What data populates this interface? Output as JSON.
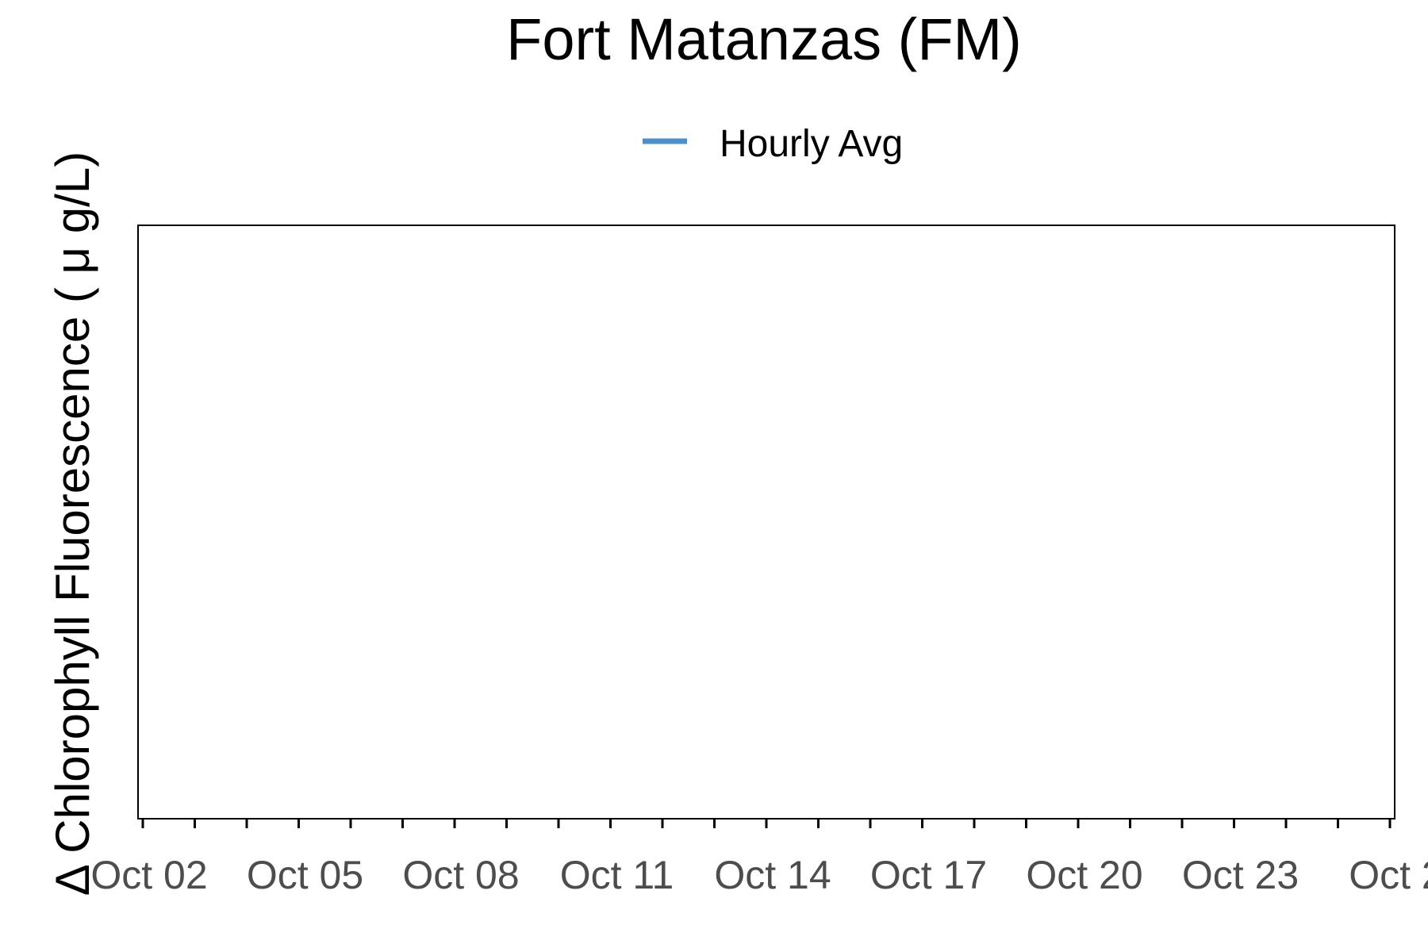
{
  "chart_data": {
    "type": "line",
    "title": "Fort Matanzas (FM)",
    "ylabel": "Δ Chlorophyll Fluorescence ( μ g/L)",
    "xlabel": "",
    "legend": {
      "position": "top",
      "entries": [
        {
          "label": "Hourly Avg",
          "color": "#4d90c9"
        }
      ]
    },
    "x_axis": {
      "kind": "date",
      "tick_labels": [
        "Oct 02",
        "Oct 05",
        "Oct 08",
        "Oct 11",
        "Oct 14",
        "Oct 17",
        "Oct 20",
        "Oct 23",
        "Oct 2"
      ],
      "major_tick_count": 9,
      "minor_ticks_between": 2
    },
    "y_axis": {
      "tick_labels": []
    },
    "grid": false,
    "series": [
      {
        "name": "Hourly Avg",
        "color": "#4d90c9",
        "values": []
      }
    ]
  }
}
